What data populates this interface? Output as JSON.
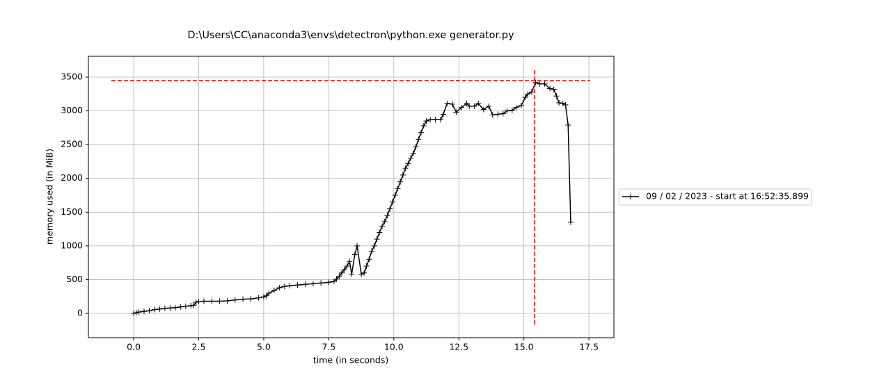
{
  "chart_data": {
    "type": "line",
    "title": "D:\\Users\\CC\\anaconda3\\envs\\detectron\\python.exe generator.py",
    "x_label": "time (in seconds)",
    "y_label": "memory used (in MiB)",
    "xlim": [
      -1.74,
      18.46
    ],
    "ylim": [
      -360,
      3809
    ],
    "xticks": [
      {
        "value": 0,
        "label": "0.0"
      },
      2.5,
      {
        "value": 5,
        "label": "5.0"
      },
      7.5,
      {
        "value": 10,
        "label": "10.0"
      },
      12.5,
      {
        "value": 15,
        "label": "15.0"
      },
      17.5
    ],
    "yticks": [
      0,
      500,
      1000,
      1500,
      2000,
      2500,
      3000,
      3500
    ],
    "grid": true,
    "legend": "outside right",
    "series": [
      {
        "name": "09 / 02 / 2023 - start at 16:52:35.899",
        "color": "#000000",
        "x": [
          0,
          0.1,
          0.2,
          0.4,
          0.6,
          0.8,
          1.0,
          1.2,
          1.4,
          1.6,
          1.8,
          2.0,
          2.2,
          2.3,
          2.4,
          2.5,
          2.7,
          3.0,
          3.3,
          3.6,
          3.9,
          4.2,
          4.5,
          4.8,
          5.0,
          5.1,
          5.2,
          5.4,
          5.6,
          5.8,
          6.0,
          6.3,
          6.6,
          6.9,
          7.2,
          7.5,
          7.7,
          7.8,
          7.9,
          8.0,
          8.1,
          8.2,
          8.3,
          8.38,
          8.5,
          8.59,
          8.75,
          8.86,
          8.95,
          9.05,
          9.15,
          9.25,
          9.35,
          9.45,
          9.55,
          9.65,
          9.75,
          9.85,
          9.95,
          10.05,
          10.15,
          10.25,
          10.35,
          10.45,
          10.55,
          10.65,
          10.75,
          10.85,
          10.95,
          11.05,
          11.15,
          11.25,
          11.4,
          11.6,
          11.8,
          11.9,
          12.05,
          12.25,
          12.4,
          12.6,
          12.8,
          12.9,
          13.1,
          13.25,
          13.45,
          13.65,
          13.8,
          14.0,
          14.2,
          14.35,
          14.55,
          14.7,
          14.9,
          15.05,
          15.15,
          15.3,
          15.45,
          15.6,
          15.8,
          16.0,
          16.15,
          16.25,
          16.35,
          16.5,
          16.6,
          16.7,
          16.8
        ],
        "values": [
          0,
          10,
          20,
          30,
          40,
          55,
          65,
          75,
          80,
          85,
          95,
          105,
          115,
          120,
          165,
          175,
          180,
          180,
          180,
          185,
          200,
          210,
          215,
          230,
          245,
          260,
          300,
          340,
          380,
          400,
          410,
          420,
          430,
          440,
          450,
          460,
          475,
          510,
          550,
          600,
          650,
          700,
          770,
          580,
          870,
          1000,
          580,
          600,
          700,
          800,
          920,
          1000,
          1100,
          1200,
          1290,
          1360,
          1450,
          1550,
          1650,
          1750,
          1850,
          1950,
          2050,
          2150,
          2220,
          2300,
          2370,
          2470,
          2580,
          2680,
          2780,
          2850,
          2870,
          2870,
          2870,
          2950,
          3110,
          3100,
          2980,
          3050,
          3110,
          3070,
          3070,
          3110,
          3020,
          3070,
          2940,
          2950,
          2960,
          3000,
          3010,
          3050,
          3080,
          3200,
          3250,
          3280,
          3420,
          3400,
          3400,
          3330,
          3320,
          3220,
          3120,
          3110,
          3090,
          2790,
          1350
        ]
      }
    ],
    "hline": {
      "y": 3450,
      "xmin": -0.86,
      "xmax": 17.55,
      "color": "#ff0000"
    },
    "vline": {
      "x": 15.41,
      "ymin": -165,
      "ymax": 3624,
      "color": "#ff0000"
    }
  }
}
